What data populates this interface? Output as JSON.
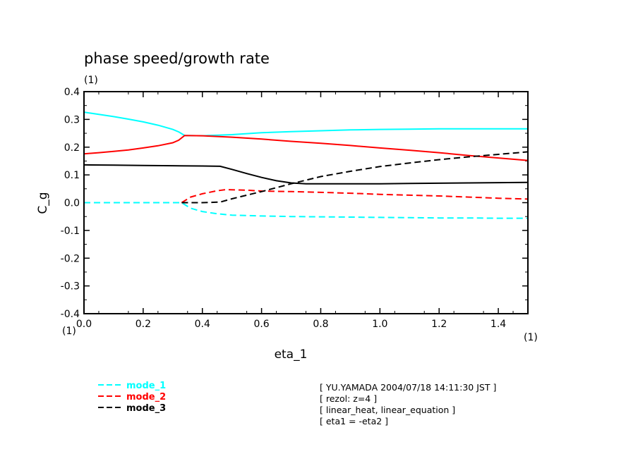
{
  "chart_data": {
    "type": "line",
    "title": "phase speed/growth rate",
    "ylabel": "C_g",
    "xlabel": "eta_1",
    "y_unit": "(1)",
    "x_unit": "(1)",
    "x_origin_unit": "(1)",
    "xlim": [
      0.0,
      1.5
    ],
    "ylim": [
      -0.4,
      0.4
    ],
    "xticks": [
      "0.0",
      "0.2",
      "0.4",
      "0.6",
      "0.8",
      "1.0",
      "1.2",
      "1.4"
    ],
    "xtick_values": [
      0.0,
      0.2,
      0.4,
      0.6,
      0.8,
      1.0,
      1.2,
      1.4
    ],
    "yticks": [
      "0.4",
      "0.3",
      "0.2",
      "0.1",
      "0.0",
      "-0.1",
      "-0.2",
      "-0.3",
      "-0.4"
    ],
    "ytick_values": [
      0.4,
      0.3,
      0.2,
      0.1,
      0.0,
      -0.1,
      -0.2,
      -0.3,
      -0.4
    ],
    "grid": false,
    "legend_placement": "bottom-left",
    "series": [
      {
        "name": "mode_1",
        "kind": "phase",
        "color": "#00ffff",
        "dash": false,
        "x": [
          0.0,
          0.05,
          0.1,
          0.15,
          0.2,
          0.25,
          0.3,
          0.32,
          0.34,
          0.4,
          0.5,
          0.6,
          0.7,
          0.8,
          0.9,
          1.0,
          1.1,
          1.2,
          1.3,
          1.4,
          1.5
        ],
        "y": [
          0.326,
          0.318,
          0.31,
          0.301,
          0.291,
          0.279,
          0.264,
          0.255,
          0.242,
          0.241,
          0.245,
          0.252,
          0.256,
          0.259,
          0.262,
          0.264,
          0.265,
          0.266,
          0.266,
          0.266,
          0.266
        ]
      },
      {
        "name": "mode_2",
        "kind": "phase",
        "color": "#ff0000",
        "dash": false,
        "x": [
          0.0,
          0.05,
          0.1,
          0.15,
          0.2,
          0.25,
          0.3,
          0.32,
          0.34,
          0.4,
          0.5,
          0.6,
          0.7,
          0.8,
          0.9,
          1.0,
          1.1,
          1.2,
          1.3,
          1.4,
          1.5
        ],
        "y": [
          0.176,
          0.18,
          0.185,
          0.19,
          0.197,
          0.205,
          0.216,
          0.225,
          0.242,
          0.241,
          0.236,
          0.229,
          0.221,
          0.214,
          0.206,
          0.197,
          0.189,
          0.18,
          0.17,
          0.161,
          0.152
        ]
      },
      {
        "name": "mode_3",
        "kind": "phase",
        "color": "#000000",
        "dash": false,
        "x": [
          0.0,
          0.1,
          0.2,
          0.3,
          0.4,
          0.46,
          0.5,
          0.55,
          0.6,
          0.65,
          0.7,
          0.75,
          0.8,
          0.9,
          1.0,
          1.1,
          1.2,
          1.3,
          1.4,
          1.5
        ],
        "y": [
          0.136,
          0.135,
          0.134,
          0.133,
          0.132,
          0.131,
          0.12,
          0.105,
          0.091,
          0.079,
          0.071,
          0.068,
          0.068,
          0.068,
          0.068,
          0.069,
          0.07,
          0.071,
          0.072,
          0.073
        ]
      },
      {
        "name": "mode_1",
        "kind": "growth",
        "color": "#00ffff",
        "dash": true,
        "x": [
          0.0,
          0.1,
          0.2,
          0.3,
          0.33,
          0.36,
          0.4,
          0.45,
          0.5,
          0.6,
          0.7,
          0.8,
          0.9,
          1.0,
          1.1,
          1.2,
          1.3,
          1.4,
          1.5
        ],
        "y": [
          0.0,
          0.0,
          0.0,
          0.0,
          0.0,
          -0.02,
          -0.032,
          -0.04,
          -0.045,
          -0.048,
          -0.05,
          -0.051,
          -0.052,
          -0.053,
          -0.054,
          -0.055,
          -0.055,
          -0.056,
          -0.056
        ]
      },
      {
        "name": "mode_2",
        "kind": "growth",
        "color": "#ff0000",
        "dash": true,
        "x": [
          0.33,
          0.36,
          0.4,
          0.45,
          0.48,
          0.55,
          0.6,
          0.7,
          0.8,
          0.9,
          1.0,
          1.1,
          1.2,
          1.3,
          1.4,
          1.5
        ],
        "y": [
          0.0,
          0.02,
          0.032,
          0.043,
          0.047,
          0.045,
          0.042,
          0.04,
          0.037,
          0.034,
          0.03,
          0.027,
          0.024,
          0.02,
          0.016,
          0.013
        ]
      },
      {
        "name": "mode_3",
        "kind": "growth",
        "color": "#000000",
        "dash": true,
        "x": [
          0.33,
          0.4,
          0.46,
          0.5,
          0.6,
          0.7,
          0.8,
          0.9,
          1.0,
          1.1,
          1.2,
          1.3,
          1.4,
          1.5
        ],
        "y": [
          0.0,
          0.0,
          0.002,
          0.014,
          0.04,
          0.068,
          0.094,
          0.113,
          0.13,
          0.143,
          0.155,
          0.165,
          0.174,
          0.183
        ]
      }
    ],
    "legend": [
      {
        "label": "mode_1",
        "color": "#00ffff"
      },
      {
        "label": "mode_2",
        "color": "#ff0000"
      },
      {
        "label": "mode_3",
        "color": "#000000"
      }
    ],
    "annotations": [
      "[ YU.YAMADA 2004/07/18 14:11:30 JST ]",
      "[ rezol: z=4 ]",
      "[ linear_heat, linear_equation ]",
      "[ eta1 = -eta2 ]"
    ]
  }
}
